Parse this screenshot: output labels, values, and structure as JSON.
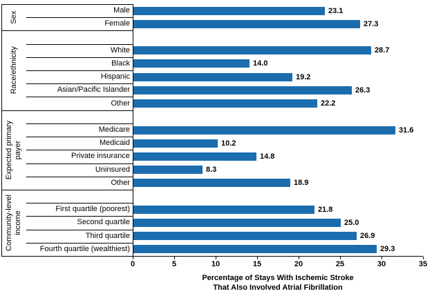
{
  "chart_data": {
    "type": "bar",
    "orientation": "horizontal",
    "title": "",
    "xlabel_lines": [
      "Percentage of Stays With Ischemic Stroke",
      "That Also Involved  Atrial Fibrillation"
    ],
    "xlim": [
      0,
      35
    ],
    "xticks": [
      0,
      5,
      10,
      15,
      20,
      25,
      30,
      35
    ],
    "grid": false,
    "legend_position": "none",
    "bar_color": "#1B6DAE",
    "axis_color": "#000000",
    "groups": [
      {
        "label": "Sex",
        "label_lines": [
          "Sex"
        ],
        "items": [
          {
            "label": "Male",
            "value": 23.1,
            "value_label": "23.1"
          },
          {
            "label": "Female",
            "value": 27.3,
            "value_label": "27.3"
          }
        ]
      },
      {
        "label": "Race/ethnicity",
        "label_lines": [
          "Race/ethnicity"
        ],
        "items": [
          {
            "label": "White",
            "value": 28.7,
            "value_label": "28.7"
          },
          {
            "label": "Black",
            "value": 14.0,
            "value_label": "14.0"
          },
          {
            "label": "Hispanic",
            "value": 19.2,
            "value_label": "19.2"
          },
          {
            "label": "Asian/Pacific Islander",
            "value": 26.3,
            "value_label": "26.3"
          },
          {
            "label": "Other",
            "value": 22.2,
            "value_label": "22.2"
          }
        ]
      },
      {
        "label": "Expected primary payer",
        "label_lines": [
          "Expected primary",
          "payer"
        ],
        "items": [
          {
            "label": "Medicare",
            "value": 31.6,
            "value_label": "31.6"
          },
          {
            "label": "Medicaid",
            "value": 10.2,
            "value_label": "10.2"
          },
          {
            "label": "Private insurance",
            "value": 14.8,
            "value_label": "14.8"
          },
          {
            "label": "Uninsured",
            "value": 8.3,
            "value_label": "8.3"
          },
          {
            "label": "Other",
            "value": 18.9,
            "value_label": "18.9"
          }
        ]
      },
      {
        "label": "Community-level income",
        "label_lines": [
          "Community-level",
          "income"
        ],
        "items": [
          {
            "label": "First quartile (poorest)",
            "value": 21.8,
            "value_label": "21.8"
          },
          {
            "label": "Second quartile",
            "value": 25.0,
            "value_label": "25.0"
          },
          {
            "label": "Third quartile",
            "value": 26.9,
            "value_label": "26.9"
          },
          {
            "label": "Fourth quartile (wealthiest)",
            "value": 29.3,
            "value_label": "29.3"
          }
        ]
      }
    ]
  }
}
